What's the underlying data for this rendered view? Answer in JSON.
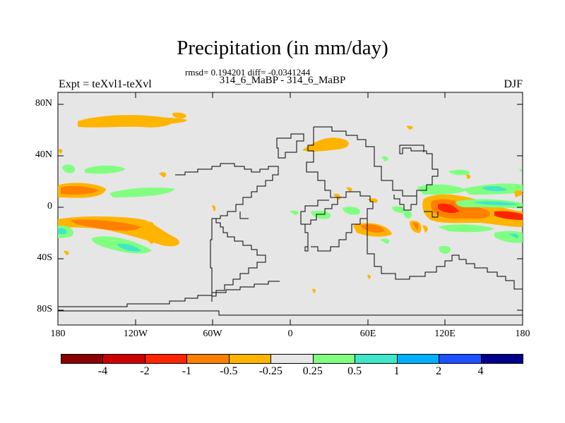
{
  "header": {
    "title": "Precipitation (in mm/day)",
    "subtitle": "rmsd= 0.194201 diff= -0.0341244",
    "left_label": "Expt = teXvl1-teXvl",
    "center_label": "314_6_MaBP - 314_6_MaBP",
    "season": "DJF"
  },
  "axes": {
    "y_ticks": [
      "80N",
      "40N",
      "0",
      "40S",
      "80S"
    ],
    "x_ticks": [
      "180",
      "120W",
      "60W",
      "0",
      "60E",
      "120E",
      "180"
    ]
  },
  "colors": {
    "map_background": "#e6e6e6",
    "coastline": "#000000"
  },
  "colorbar": {
    "colors": [
      "#8b0000",
      "#cd0000",
      "#ff2400",
      "#ff7f00",
      "#ffb400",
      "#e6e6e6",
      "#80ff80",
      "#3fe6c8",
      "#00b0ff",
      "#1e50ff",
      "#00008b"
    ],
    "labels": [
      "-4",
      "-2",
      "-1",
      "-0.5",
      "-0.25",
      "0.25",
      "0.5",
      "1",
      "2",
      "4"
    ]
  }
}
